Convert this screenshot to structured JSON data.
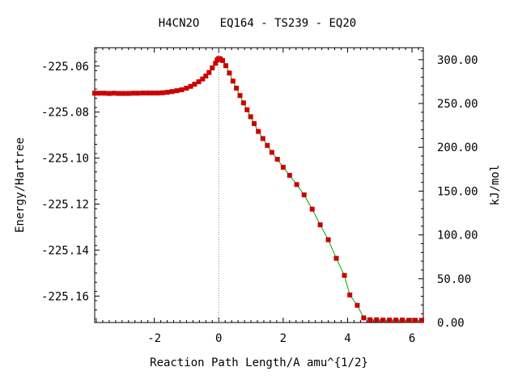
{
  "chart_data": {
    "type": "line",
    "title": "H4CN2O   EQ164 - TS239 - EQ20",
    "xlabel": "Reaction Path Length/A amu^{1/2}",
    "ylabel": "Energy/Hartree",
    "y2label": "kJ/mol",
    "xlim": [
      -3.85,
      6.35
    ],
    "ylim": [
      -225.1715,
      -225.052
    ],
    "y2lim": [
      0.0,
      313.7
    ],
    "x_ticks": [
      -2,
      0,
      2,
      4,
      6
    ],
    "x_tick_labels": [
      "-2",
      "0",
      "2",
      "4",
      "6"
    ],
    "y_ticks": [
      -225.06,
      -225.08,
      -225.1,
      -225.12,
      -225.14,
      -225.16
    ],
    "y_tick_labels": [
      "-225.06",
      "-225.08",
      "-225.10",
      "-225.12",
      "-225.14",
      "-225.16"
    ],
    "y2_ticks": [
      300,
      250,
      200,
      150,
      100,
      50,
      0
    ],
    "y2_tick_labels": [
      "300.00",
      "250.00",
      "200.00",
      "150.00",
      "100.00",
      "50.00",
      "0.00"
    ],
    "ts_marker_x": 0,
    "grid": false,
    "line_color": "#00aa00",
    "marker_color": "#cc0000",
    "x": [
      -3.85,
      -3.7,
      -3.55,
      -3.4,
      -3.25,
      -3.1,
      -2.95,
      -2.8,
      -2.65,
      -2.5,
      -2.35,
      -2.2,
      -2.05,
      -1.9,
      -1.75,
      -1.6,
      -1.45,
      -1.3,
      -1.15,
      -1.0,
      -0.87,
      -0.75,
      -0.62,
      -0.5,
      -0.4,
      -0.3,
      -0.2,
      -0.1,
      -0.05,
      0.0,
      0.05,
      0.12,
      0.22,
      0.33,
      0.44,
      0.55,
      0.66,
      0.77,
      0.88,
      0.99,
      1.1,
      1.23,
      1.37,
      1.51,
      1.65,
      1.82,
      2.0,
      2.2,
      2.42,
      2.65,
      2.9,
      3.15,
      3.4,
      3.65,
      3.9,
      4.07,
      4.3,
      4.5,
      4.7,
      4.9,
      5.1,
      5.3,
      5.5,
      5.7,
      5.9,
      6.1,
      6.3
    ],
    "y": [
      -225.0718,
      -225.0718,
      -225.0718,
      -225.0719,
      -225.0718,
      -225.0719,
      -225.0719,
      -225.0719,
      -225.0718,
      -225.0718,
      -225.0717,
      -225.0717,
      -225.0717,
      -225.0717,
      -225.0716,
      -225.0714,
      -225.0711,
      -225.0707,
      -225.0703,
      -225.0696,
      -225.0688,
      -225.0679,
      -225.0668,
      -225.0656,
      -225.0643,
      -225.0628,
      -225.0608,
      -225.0588,
      -225.0573,
      -225.0567,
      -225.0569,
      -225.0576,
      -225.0598,
      -225.063,
      -225.0665,
      -225.0696,
      -225.0728,
      -225.076,
      -225.079,
      -225.082,
      -225.085,
      -225.0884,
      -225.0915,
      -225.0945,
      -225.0975,
      -225.1005,
      -225.104,
      -225.1075,
      -225.1115,
      -225.116,
      -225.1222,
      -225.129,
      -225.1355,
      -225.1436,
      -225.151,
      -225.1595,
      -225.164,
      -225.1695,
      -225.1703,
      -225.1703,
      -225.1704,
      -225.1704,
      -225.1704,
      -225.1704,
      -225.1705,
      -225.1705,
      -225.1705
    ]
  }
}
